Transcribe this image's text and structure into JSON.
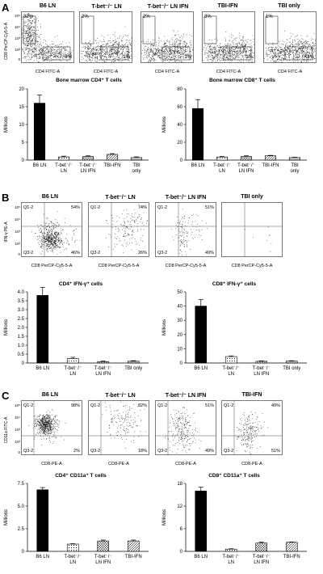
{
  "panels": [
    {
      "label": "A",
      "facs": {
        "xlabel": "CD4 FITC-A",
        "ylabel": "CD8 PerCP-Cy5-5-A",
        "yticks": [
          "10⁵",
          "10⁴",
          "10³",
          "10²",
          "0"
        ],
        "plots": [
          {
            "title": "B6 LN",
            "tl": "32%",
            "br": "9%",
            "pattern": "A0"
          },
          {
            "title": "T-bet⁻/⁻ LN",
            "tl": "2%",
            "br": "1%",
            "pattern": "A1"
          },
          {
            "title": "T-bet⁻/⁻ LN IFN",
            "tl": "2%",
            "br": "1%",
            "pattern": "A1"
          },
          {
            "title": "TBI-IFN",
            "tl": "3%",
            "br": "1%",
            "pattern": "A1"
          },
          {
            "title": "TBI only",
            "tl": "1%",
            "br": "<1%",
            "pattern": "A1"
          }
        ]
      },
      "charts": [
        {
          "type": "bar",
          "title": "Bone marrow CD4⁺ T cells",
          "ylabel": "Millions",
          "ylim": [
            0,
            20
          ],
          "yticks": [
            "0",
            "5",
            "10",
            "15",
            "20"
          ],
          "categories": [
            [
              "B6 LN"
            ],
            [
              "T-bet⁻/⁻",
              "LN"
            ],
            [
              "T-bet⁻/⁻",
              "LN IFN"
            ],
            [
              "TBI-IFN"
            ],
            [
              "TBI",
              "only"
            ]
          ],
          "values": [
            16,
            0.9,
            1.0,
            1.6,
            0.7
          ],
          "errors": [
            2.3,
            0.2,
            0.2,
            0.2,
            0.2
          ],
          "patterns": [
            "solid",
            "dots",
            "cross",
            "diag",
            "hlines"
          ]
        },
        {
          "type": "bar",
          "title": "Bone marrow CD8⁺ T cells",
          "ylabel": "Millions",
          "ylim": [
            0,
            80
          ],
          "yticks": [
            "0",
            "20",
            "40",
            "60",
            "80"
          ],
          "categories": [
            [
              "B6 LN"
            ],
            [
              "T-bet⁻/⁻",
              "LN"
            ],
            [
              "T-bet⁻/⁻",
              "LN IFN"
            ],
            [
              "TBI-IFN"
            ],
            [
              "TBI",
              "only"
            ]
          ],
          "values": [
            58,
            3.5,
            4.0,
            4.8,
            2.8
          ],
          "errors": [
            10,
            0.6,
            0.8,
            0.5,
            0.4
          ],
          "patterns": [
            "solid",
            "dots",
            "cross",
            "diag",
            "hlines"
          ]
        }
      ]
    },
    {
      "label": "B",
      "facs": {
        "xlabel": "CD8 PerCP-Cy5-5-A",
        "ylabel": "IFN-γ PE-A",
        "yticks": [
          "10⁵",
          "10⁴",
          "10³",
          "10²",
          "0"
        ],
        "plots": [
          {
            "title": "B6 LN",
            "q1": "Q1-2",
            "q3": "Q3-2",
            "tr": "54%",
            "br": "46%",
            "pattern": "B0"
          },
          {
            "title": "T-bet⁻/⁻ LN",
            "q1": "Q1-2",
            "q3": "Q3-2",
            "tr": "74%",
            "br": "26%",
            "pattern": "B1"
          },
          {
            "title": "T-bet⁻/⁻ LN IFN",
            "q1": "Q1-2",
            "q3": "Q3-2",
            "tr": "51%",
            "br": "49%",
            "pattern": "B2"
          },
          {
            "title": "TBI only",
            "q1": "",
            "q3": "",
            "tr": "",
            "br": "",
            "pattern": "B3"
          }
        ]
      },
      "charts": [
        {
          "type": "bar",
          "title": "CD4⁺ IFN-γ⁺ cells",
          "ylabel": "Millions",
          "ylim": [
            0,
            4.0
          ],
          "yticks": [
            "0",
            "0.5",
            "1.0",
            "1.5",
            "2.0",
            "2.5",
            "3.0",
            "3.5",
            "4.0"
          ],
          "categories": [
            [
              "B6 LN"
            ],
            [
              "T-bet⁻/⁻",
              "LN"
            ],
            [
              "T-bet⁻/⁻",
              "LN IFN"
            ],
            [
              "TBI only"
            ]
          ],
          "values": [
            3.8,
            0.25,
            0.08,
            0.1
          ],
          "errors": [
            0.45,
            0.07,
            0.03,
            0.03
          ],
          "patterns": [
            "solid",
            "dots",
            "cross",
            "hlines"
          ]
        },
        {
          "type": "bar",
          "title": "CD8⁺ IFN-γ⁺ cells",
          "ylabel": "Millions",
          "ylim": [
            0,
            50
          ],
          "yticks": [
            "0",
            "10",
            "20",
            "30",
            "40",
            "50"
          ],
          "categories": [
            [
              "B6 LN"
            ],
            [
              "T-bet⁻/⁻",
              "LN"
            ],
            [
              "T-bet⁻/⁻",
              "LN IFN"
            ],
            [
              "TBI only"
            ]
          ],
          "values": [
            40,
            4.5,
            1.2,
            1.3
          ],
          "errors": [
            4.5,
            0.5,
            0.3,
            0.3
          ],
          "patterns": [
            "solid",
            "dots",
            "cross",
            "hlines"
          ]
        }
      ]
    },
    {
      "label": "C",
      "facs": {
        "xlabel": "CD8-PE-A",
        "ylabel": "CD11a FITC-A",
        "yticks": [
          "10⁵",
          "10⁴",
          "10³",
          "10²",
          "0"
        ],
        "plots": [
          {
            "title": "B6 LN",
            "q1": "Q1-2",
            "q3": "Q3-2",
            "tr": "98%",
            "br": "2%",
            "pattern": "C0"
          },
          {
            "title": "T-bet⁻/⁻ LN",
            "q1": "Q1-2",
            "q3": "Q3-2",
            "tr": "82%",
            "br": "18%",
            "pattern": "C1"
          },
          {
            "title": "T-bet⁻/⁻ LN IFN",
            "q1": "Q1-2",
            "q3": "Q3-2",
            "tr": "51%",
            "br": "49%",
            "pattern": "C2"
          },
          {
            "title": "TBI-IFN",
            "q1": "Q1-2",
            "q3": "Q3-2",
            "tr": "49%",
            "br": "51%",
            "pattern": "C3"
          }
        ]
      },
      "charts": [
        {
          "type": "bar",
          "title": "CD4⁺ CD11a⁺ T cells",
          "ylabel": "Millions",
          "ylim": [
            0,
            7.5
          ],
          "yticks": [
            "0",
            "2.5",
            "5.0",
            "7.5"
          ],
          "categories": [
            [
              "B6 LN"
            ],
            [
              "T-bet⁻/⁻",
              "LN"
            ],
            [
              "T-bet⁻/⁻",
              "LN IFN"
            ],
            [
              "TBI-IFN"
            ]
          ],
          "values": [
            6.8,
            0.8,
            1.15,
            1.15
          ],
          "errors": [
            0.25,
            0.05,
            0.1,
            0.1
          ],
          "patterns": [
            "solid",
            "dots",
            "cross",
            "diag"
          ]
        },
        {
          "type": "bar",
          "title": "CD8⁺ CD11a⁺ T cells",
          "ylabel": "Millions",
          "ylim": [
            0,
            18
          ],
          "yticks": [
            "0",
            "6",
            "12",
            "18"
          ],
          "categories": [
            [
              "B6 LN"
            ],
            [
              "T-bet⁻/⁻",
              "LN"
            ],
            [
              "T-bet⁻/⁻",
              "LN IFN"
            ],
            [
              "TBI-IFN"
            ]
          ],
          "values": [
            16,
            0.6,
            2.2,
            2.4
          ],
          "errors": [
            1.0,
            0.1,
            0.3,
            0.1
          ],
          "patterns": [
            "solid",
            "dots",
            "cross",
            "diag"
          ]
        }
      ]
    }
  ],
  "chart_data": [
    {
      "type": "bar",
      "title": "Bone marrow CD4⁺ T cells",
      "ylabel": "Millions",
      "ylim": [
        0,
        20
      ],
      "categories": [
        "B6 LN",
        "T-bet⁻/⁻ LN",
        "T-bet⁻/⁻ LN IFN",
        "TBI-IFN",
        "TBI only"
      ],
      "values": [
        16,
        0.9,
        1.0,
        1.6,
        0.7
      ]
    },
    {
      "type": "bar",
      "title": "Bone marrow CD8⁺ T cells",
      "ylabel": "Millions",
      "ylim": [
        0,
        80
      ],
      "categories": [
        "B6 LN",
        "T-bet⁻/⁻ LN",
        "T-bet⁻/⁻ LN IFN",
        "TBI-IFN",
        "TBI only"
      ],
      "values": [
        58,
        3.5,
        4.0,
        4.8,
        2.8
      ]
    },
    {
      "type": "bar",
      "title": "CD4⁺ IFN-γ⁺ cells",
      "ylabel": "Millions",
      "ylim": [
        0,
        4.0
      ],
      "categories": [
        "B6 LN",
        "T-bet⁻/⁻ LN",
        "T-bet⁻/⁻ LN IFN",
        "TBI only"
      ],
      "values": [
        3.8,
        0.25,
        0.08,
        0.1
      ]
    },
    {
      "type": "bar",
      "title": "CD8⁺ IFN-γ⁺ cells",
      "ylabel": "Millions",
      "ylim": [
        0,
        50
      ],
      "categories": [
        "B6 LN",
        "T-bet⁻/⁻ LN",
        "T-bet⁻/⁻ LN IFN",
        "TBI only"
      ],
      "values": [
        40,
        4.5,
        1.2,
        1.3
      ]
    },
    {
      "type": "bar",
      "title": "CD4⁺ CD11a⁺ T cells",
      "ylabel": "Millions",
      "ylim": [
        0,
        7.5
      ],
      "categories": [
        "B6 LN",
        "T-bet⁻/⁻ LN",
        "T-bet⁻/⁻ LN IFN",
        "TBI-IFN"
      ],
      "values": [
        6.8,
        0.8,
        1.15,
        1.15
      ]
    },
    {
      "type": "bar",
      "title": "CD8⁺ CD11a⁺ T cells",
      "ylabel": "Millions",
      "ylim": [
        0,
        18
      ],
      "categories": [
        "B6 LN",
        "T-bet⁻/⁻ LN",
        "T-bet⁻/⁻ LN IFN",
        "TBI-IFN"
      ],
      "values": [
        16,
        0.6,
        2.2,
        2.4
      ]
    }
  ]
}
